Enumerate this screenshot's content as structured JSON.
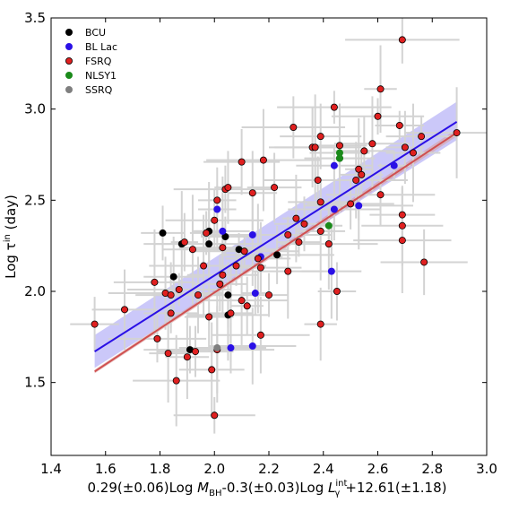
{
  "chart_data": {
    "type": "scatter",
    "xlabel": {
      "parts": [
        "0.29(±0.06)Log ",
        "M",
        "BH",
        "-0.3(±0.03)Log ",
        "L",
        "int",
        "γ",
        "+12.61(±1.18)"
      ]
    },
    "ylabel": {
      "parts": [
        "Log ",
        "τ",
        "in",
        " (day)"
      ]
    },
    "xlim": [
      1.4,
      3.0
    ],
    "ylim": [
      1.1,
      3.5
    ],
    "x_ticks": [
      "1.4",
      "1.6",
      "1.8",
      "2.0",
      "2.2",
      "2.4",
      "2.6",
      "2.8",
      "3.0"
    ],
    "y_ticks": [
      "1.5",
      "2.0",
      "2.5",
      "3.0",
      "3.5"
    ],
    "legend_position": "top-left",
    "errorbar_color": "#d3d3d3",
    "series": [
      {
        "name": "BCU",
        "color": "#000000",
        "edge": "#000000",
        "points": [
          [
            1.81,
            2.32
          ],
          [
            1.85,
            2.08
          ],
          [
            1.88,
            2.26
          ],
          [
            1.91,
            1.68
          ],
          [
            1.98,
            2.26
          ],
          [
            1.98,
            2.33
          ],
          [
            2.04,
            2.3
          ],
          [
            2.05,
            1.98
          ],
          [
            2.05,
            1.87
          ],
          [
            2.09,
            2.23
          ],
          [
            2.23,
            2.2
          ]
        ]
      },
      {
        "name": "BL Lac",
        "color": "#2a10e6",
        "edge": "#2a10e6",
        "points": [
          [
            2.01,
            2.45
          ],
          [
            2.03,
            2.33
          ],
          [
            2.06,
            1.69
          ],
          [
            2.14,
            1.7
          ],
          [
            2.14,
            2.31
          ],
          [
            2.15,
            1.99
          ],
          [
            2.17,
            2.19
          ],
          [
            2.43,
            2.11
          ],
          [
            2.44,
            2.69
          ],
          [
            2.44,
            2.45
          ],
          [
            2.53,
            2.47
          ],
          [
            2.66,
            2.69
          ]
        ]
      },
      {
        "name": "FSRQ",
        "color": "#e02020",
        "edge": "#000000",
        "points": [
          [
            1.56,
            1.82
          ],
          [
            1.67,
            1.9
          ],
          [
            1.78,
            2.05
          ],
          [
            1.79,
            1.74
          ],
          [
            1.82,
            1.99
          ],
          [
            1.83,
            1.66
          ],
          [
            1.84,
            1.88
          ],
          [
            1.84,
            1.98
          ],
          [
            1.86,
            1.51
          ],
          [
            1.87,
            2.01
          ],
          [
            1.89,
            2.27
          ],
          [
            1.9,
            1.64
          ],
          [
            1.92,
            2.23
          ],
          [
            1.93,
            1.67
          ],
          [
            1.94,
            1.98
          ],
          [
            1.96,
            2.14
          ],
          [
            1.97,
            2.32
          ],
          [
            1.98,
            1.86
          ],
          [
            1.99,
            1.57
          ],
          [
            2.0,
            1.32
          ],
          [
            2.0,
            2.39
          ],
          [
            2.01,
            1.68
          ],
          [
            2.01,
            2.5
          ],
          [
            2.02,
            2.04
          ],
          [
            2.03,
            2.09
          ],
          [
            2.03,
            2.24
          ],
          [
            2.04,
            2.56
          ],
          [
            2.05,
            2.57
          ],
          [
            2.06,
            1.88
          ],
          [
            2.08,
            2.14
          ],
          [
            2.1,
            2.71
          ],
          [
            2.1,
            1.95
          ],
          [
            2.11,
            2.22
          ],
          [
            2.12,
            1.92
          ],
          [
            2.14,
            2.54
          ],
          [
            2.16,
            2.18
          ],
          [
            2.17,
            2.13
          ],
          [
            2.17,
            1.76
          ],
          [
            2.18,
            2.72
          ],
          [
            2.2,
            1.98
          ],
          [
            2.22,
            2.57
          ],
          [
            2.27,
            2.11
          ],
          [
            2.27,
            2.31
          ],
          [
            2.29,
            2.9
          ],
          [
            2.3,
            2.4
          ],
          [
            2.31,
            2.27
          ],
          [
            2.33,
            2.37
          ],
          [
            2.36,
            2.79
          ],
          [
            2.37,
            2.79
          ],
          [
            2.38,
            2.61
          ],
          [
            2.39,
            1.82
          ],
          [
            2.39,
            2.33
          ],
          [
            2.39,
            2.49
          ],
          [
            2.39,
            2.85
          ],
          [
            2.42,
            2.26
          ],
          [
            2.44,
            3.01
          ],
          [
            2.45,
            2.0
          ],
          [
            2.46,
            2.8
          ],
          [
            2.46,
            2.73
          ],
          [
            2.5,
            2.48
          ],
          [
            2.52,
            2.61
          ],
          [
            2.53,
            2.67
          ],
          [
            2.54,
            2.64
          ],
          [
            2.55,
            2.77
          ],
          [
            2.58,
            2.81
          ],
          [
            2.6,
            2.96
          ],
          [
            2.61,
            2.53
          ],
          [
            2.61,
            3.11
          ],
          [
            2.68,
            2.91
          ],
          [
            2.69,
            2.42
          ],
          [
            2.69,
            2.36
          ],
          [
            2.69,
            2.28
          ],
          [
            2.69,
            3.38
          ],
          [
            2.7,
            2.79
          ],
          [
            2.73,
            2.76
          ],
          [
            2.76,
            2.85
          ],
          [
            2.77,
            2.16
          ],
          [
            2.89,
            2.87
          ]
        ]
      },
      {
        "name": "NLSY1",
        "color": "#1a8a1a",
        "edge": "#1a8a1a",
        "points": [
          [
            2.42,
            2.36
          ],
          [
            2.46,
            2.73
          ],
          [
            2.46,
            2.76
          ]
        ]
      },
      {
        "name": "SSRQ",
        "color": "#7f7f7f",
        "edge": "#7f7f7f",
        "points": [
          [
            2.01,
            1.69
          ]
        ]
      }
    ],
    "fit_lines": [
      {
        "color": "#2a10e6",
        "band_color": "#a9a3f5",
        "x": [
          1.56,
          2.89
        ],
        "y": [
          1.67,
          2.93
        ],
        "band_lower": [
          1.58,
          2.83
        ],
        "band_upper": [
          1.76,
          3.04
        ]
      },
      {
        "color": "#d05050",
        "band_color": "#d9a0a0",
        "x": [
          1.56,
          2.89
        ],
        "y": [
          1.56,
          2.87
        ],
        "band_lower": [
          1.55,
          2.85
        ],
        "band_upper": [
          1.57,
          2.89
        ]
      }
    ]
  }
}
